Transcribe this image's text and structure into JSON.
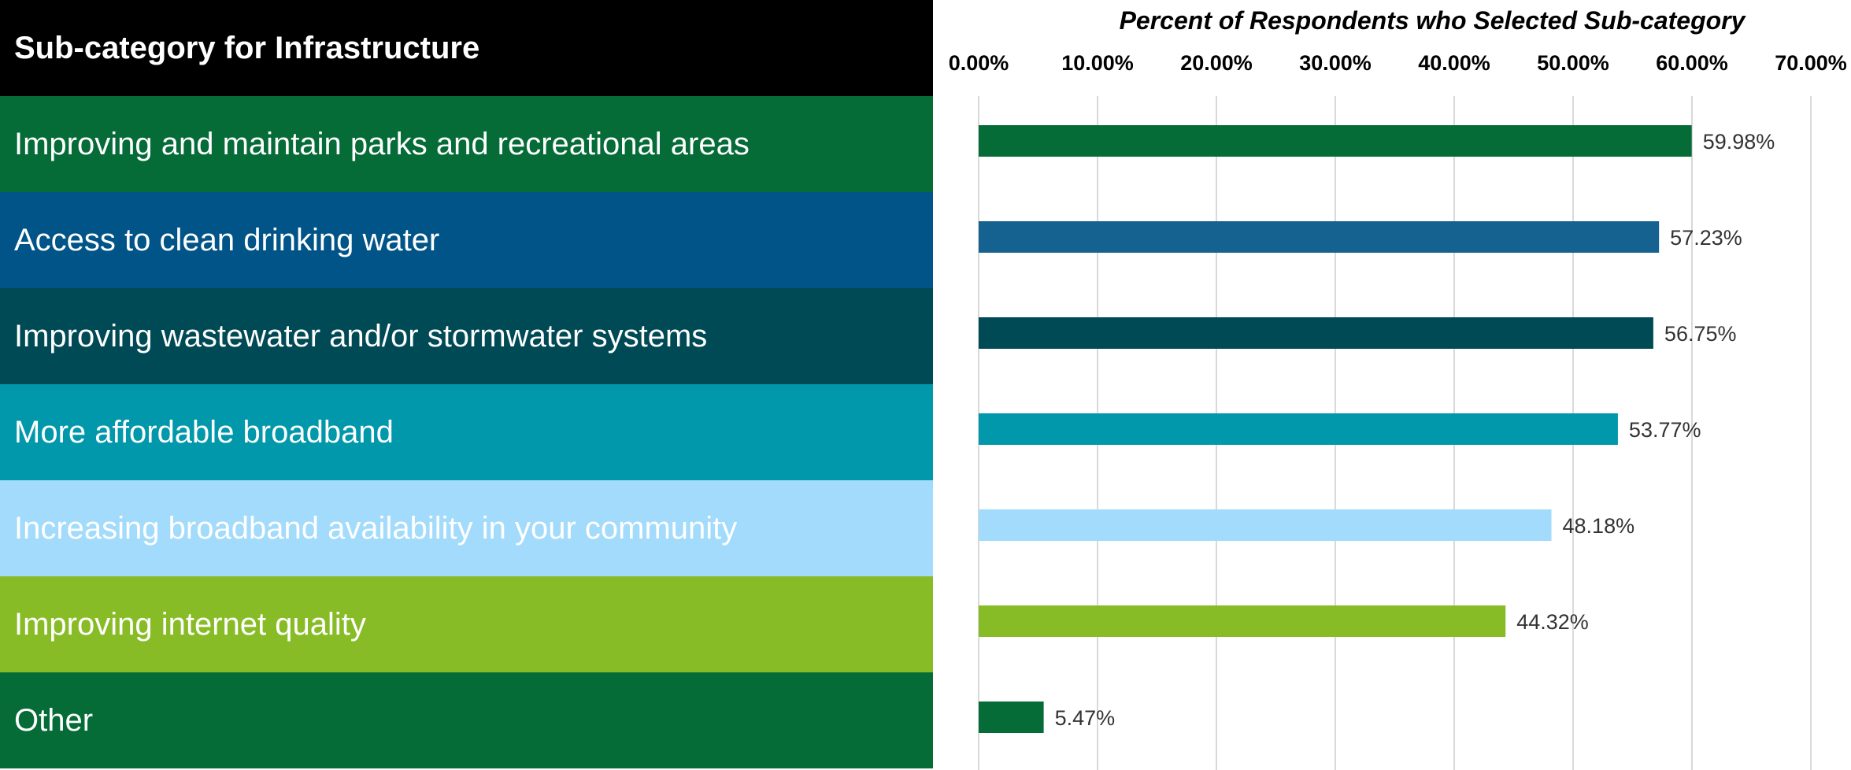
{
  "table": {
    "header": "Sub-category for Infrastructure"
  },
  "colors": {
    "header_bg": "#000000",
    "grid": "#d9d9d9",
    "row_text": "#ffffff",
    "row_colors": [
      "#056b37",
      "#005487",
      "#004a55",
      "#0098aa",
      "#a2dbfb",
      "#88bc27",
      "#056b37"
    ],
    "bar_colors": [
      "#056b37",
      "#15618f",
      "#004a55",
      "#0098aa",
      "#a2dbfb",
      "#88bc27",
      "#056b37"
    ]
  },
  "chart_data": {
    "type": "bar",
    "orientation": "horizontal",
    "title": "Percent of Respondents who Selected Sub-category",
    "categories": [
      "Improving and maintain parks and recreational areas",
      "Access to clean drinking water",
      "Improving wastewater and/or stormwater systems",
      "More affordable broadband",
      "Increasing broadband availability in your community",
      "Improving internet quality",
      "Other"
    ],
    "values": [
      59.98,
      57.23,
      56.75,
      53.77,
      48.18,
      44.32,
      5.47
    ],
    "value_labels": [
      "59.98%",
      "57.23%",
      "56.75%",
      "53.77%",
      "48.18%",
      "44.32%",
      "5.47%"
    ],
    "xlim": [
      0,
      70
    ],
    "x_ticks": [
      0,
      10,
      20,
      30,
      40,
      50,
      60,
      70
    ],
    "x_tick_labels": [
      "0.00%",
      "10.00%",
      "20.00%",
      "30.00%",
      "40.00%",
      "50.00%",
      "60.00%",
      "70.00%"
    ],
    "axis_position": "top",
    "grid": true
  }
}
